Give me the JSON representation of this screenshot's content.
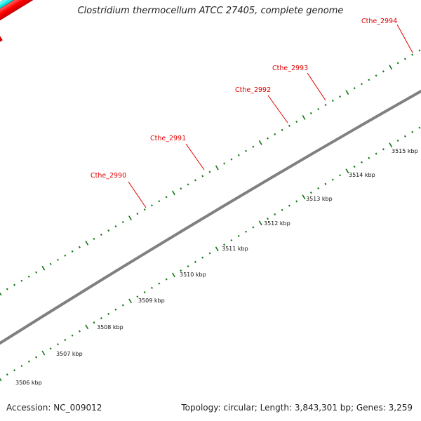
{
  "title": "Clostridium thermocellum ATCC 27405, complete genome",
  "footer": {
    "accession": "Accession: NC_009012",
    "summary": "Topology: circular; Length: 3,843,301 bp; Genes: 3,259"
  },
  "colors": {
    "cds": "#ff0000",
    "cyan_feature": "#00e5e5",
    "olive_feature": "#b5b56a",
    "orange_feature": "#ff9900",
    "backbone": "#808080",
    "tick": "#117711",
    "label": "#e00000"
  },
  "scale": {
    "tick_labels": [
      "3506 kbp",
      "3507 kbp",
      "3508 kbp",
      "3509 kbp",
      "3510 kbp",
      "3511 kbp",
      "3512 kbp",
      "3513 kbp",
      "3514 kbp",
      "3515 kbp"
    ]
  },
  "gene_labels": [
    "Cthe_2990",
    "Cthe_2991",
    "Cthe_2992",
    "Cthe_2993",
    "Cthe_2994"
  ]
}
